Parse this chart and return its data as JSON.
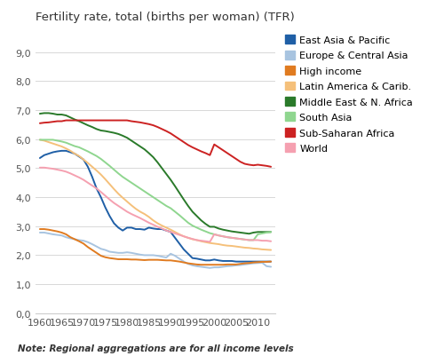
{
  "title": "Fertility rate, total (births per woman) (TFR)",
  "note": "Note: Regional aggregations are for all income levels",
  "years": [
    1960,
    1961,
    1962,
    1963,
    1964,
    1965,
    1966,
    1967,
    1968,
    1969,
    1970,
    1971,
    1972,
    1973,
    1974,
    1975,
    1976,
    1977,
    1978,
    1979,
    1980,
    1981,
    1982,
    1983,
    1984,
    1985,
    1986,
    1987,
    1988,
    1989,
    1990,
    1991,
    1992,
    1993,
    1994,
    1995,
    1996,
    1997,
    1998,
    1999,
    2000,
    2001,
    2002,
    2003,
    2004,
    2005,
    2006,
    2007,
    2008,
    2009,
    2010,
    2011,
    2012,
    2013
  ],
  "series": {
    "East Asia & Pacific": {
      "color": "#1f5fa6",
      "data": [
        5.35,
        5.45,
        5.5,
        5.55,
        5.58,
        5.6,
        5.6,
        5.55,
        5.5,
        5.4,
        5.3,
        5.05,
        4.7,
        4.3,
        4.0,
        3.65,
        3.35,
        3.1,
        2.95,
        2.85,
        2.95,
        2.95,
        2.9,
        2.9,
        2.88,
        2.95,
        2.92,
        2.9,
        2.9,
        2.85,
        2.8,
        2.6,
        2.4,
        2.2,
        2.05,
        1.9,
        1.88,
        1.85,
        1.82,
        1.82,
        1.85,
        1.82,
        1.8,
        1.8,
        1.8,
        1.78,
        1.78,
        1.78,
        1.78,
        1.78,
        1.78,
        1.78,
        1.78,
        1.78
      ]
    },
    "Europe & Central Asia": {
      "color": "#a8c4e0",
      "data": [
        2.78,
        2.78,
        2.75,
        2.72,
        2.7,
        2.68,
        2.62,
        2.58,
        2.55,
        2.52,
        2.5,
        2.45,
        2.38,
        2.3,
        2.22,
        2.18,
        2.12,
        2.1,
        2.08,
        2.08,
        2.1,
        2.08,
        2.05,
        2.02,
        2.0,
        2.0,
        2.0,
        1.98,
        1.95,
        1.92,
        2.05,
        1.98,
        1.88,
        1.78,
        1.7,
        1.65,
        1.62,
        1.6,
        1.58,
        1.56,
        1.58,
        1.58,
        1.6,
        1.62,
        1.63,
        1.65,
        1.66,
        1.68,
        1.7,
        1.72,
        1.73,
        1.74,
        1.62,
        1.6
      ]
    },
    "High income": {
      "color": "#e07b20",
      "data": [
        2.9,
        2.9,
        2.88,
        2.85,
        2.82,
        2.78,
        2.72,
        2.62,
        2.55,
        2.48,
        2.4,
        2.28,
        2.18,
        2.08,
        1.98,
        1.93,
        1.9,
        1.88,
        1.86,
        1.86,
        1.86,
        1.85,
        1.85,
        1.84,
        1.83,
        1.84,
        1.84,
        1.84,
        1.83,
        1.82,
        1.82,
        1.8,
        1.78,
        1.75,
        1.72,
        1.7,
        1.68,
        1.67,
        1.67,
        1.67,
        1.67,
        1.67,
        1.67,
        1.68,
        1.68,
        1.68,
        1.7,
        1.72,
        1.73,
        1.75,
        1.76,
        1.77,
        1.77,
        1.78
      ]
    },
    "Latin America & Carib.": {
      "color": "#f5c07a",
      "data": [
        5.98,
        5.95,
        5.9,
        5.85,
        5.8,
        5.75,
        5.68,
        5.6,
        5.5,
        5.42,
        5.3,
        5.18,
        5.05,
        4.92,
        4.78,
        4.62,
        4.45,
        4.28,
        4.12,
        3.98,
        3.85,
        3.72,
        3.6,
        3.5,
        3.42,
        3.32,
        3.2,
        3.1,
        3.02,
        2.95,
        2.88,
        2.8,
        2.72,
        2.65,
        2.6,
        2.55,
        2.52,
        2.48,
        2.45,
        2.42,
        2.4,
        2.38,
        2.35,
        2.33,
        2.32,
        2.3,
        2.28,
        2.26,
        2.25,
        2.23,
        2.22,
        2.2,
        2.19,
        2.18
      ]
    },
    "Middle East & N. Africa": {
      "color": "#2a7a2a",
      "data": [
        6.88,
        6.9,
        6.9,
        6.88,
        6.85,
        6.85,
        6.82,
        6.75,
        6.68,
        6.62,
        6.55,
        6.48,
        6.42,
        6.35,
        6.3,
        6.28,
        6.25,
        6.22,
        6.18,
        6.12,
        6.05,
        5.95,
        5.85,
        5.75,
        5.65,
        5.52,
        5.38,
        5.2,
        5.0,
        4.8,
        4.6,
        4.38,
        4.15,
        3.92,
        3.7,
        3.5,
        3.35,
        3.2,
        3.08,
        2.98,
        2.98,
        2.92,
        2.88,
        2.85,
        2.82,
        2.8,
        2.78,
        2.76,
        2.74,
        2.78,
        2.8,
        2.8,
        2.8,
        2.8
      ]
    },
    "South Asia": {
      "color": "#8fd68f",
      "data": [
        5.98,
        5.98,
        5.98,
        5.98,
        5.95,
        5.92,
        5.88,
        5.82,
        5.76,
        5.72,
        5.65,
        5.58,
        5.5,
        5.42,
        5.32,
        5.2,
        5.08,
        4.95,
        4.82,
        4.7,
        4.6,
        4.5,
        4.4,
        4.3,
        4.2,
        4.1,
        4.0,
        3.9,
        3.8,
        3.7,
        3.62,
        3.5,
        3.38,
        3.25,
        3.12,
        3.02,
        2.95,
        2.88,
        2.82,
        2.76,
        2.72,
        2.68,
        2.65,
        2.62,
        2.6,
        2.58,
        2.56,
        2.54,
        2.52,
        2.52,
        2.72,
        2.75,
        2.78,
        2.8
      ]
    },
    "Sub-Saharan Africa": {
      "color": "#cc2222",
      "data": [
        6.55,
        6.57,
        6.58,
        6.6,
        6.62,
        6.62,
        6.65,
        6.65,
        6.65,
        6.65,
        6.65,
        6.65,
        6.65,
        6.65,
        6.65,
        6.65,
        6.65,
        6.65,
        6.65,
        6.65,
        6.65,
        6.62,
        6.6,
        6.58,
        6.55,
        6.52,
        6.48,
        6.42,
        6.35,
        6.28,
        6.2,
        6.1,
        6.0,
        5.9,
        5.8,
        5.72,
        5.65,
        5.58,
        5.52,
        5.45,
        5.82,
        5.72,
        5.62,
        5.52,
        5.42,
        5.32,
        5.22,
        5.15,
        5.12,
        5.1,
        5.12,
        5.1,
        5.08,
        5.05
      ]
    },
    "World": {
      "color": "#f5a0b0",
      "data": [
        5.02,
        5.02,
        5.0,
        4.98,
        4.95,
        4.92,
        4.88,
        4.82,
        4.75,
        4.68,
        4.6,
        4.5,
        4.4,
        4.3,
        4.18,
        4.05,
        3.92,
        3.8,
        3.7,
        3.6,
        3.5,
        3.42,
        3.35,
        3.28,
        3.2,
        3.12,
        3.05,
        2.98,
        2.92,
        2.85,
        2.8,
        2.75,
        2.7,
        2.65,
        2.6,
        2.56,
        2.52,
        2.5,
        2.48,
        2.46,
        2.72,
        2.68,
        2.65,
        2.62,
        2.6,
        2.58,
        2.56,
        2.54,
        2.52,
        2.52,
        2.52,
        2.5,
        2.5,
        2.48
      ]
    }
  },
  "ylim": [
    0.0,
    9.6
  ],
  "yticks": [
    0.0,
    1.0,
    2.0,
    3.0,
    4.0,
    5.0,
    6.0,
    7.0,
    8.0,
    9.0
  ],
  "ytick_labels": [
    "0,0",
    "1,0",
    "2,0",
    "3,0",
    "4,0",
    "5,0",
    "6,0",
    "7,0",
    "8,0",
    "9,0"
  ],
  "xlim": [
    1959,
    2014
  ],
  "xticks": [
    1960,
    1965,
    1970,
    1975,
    1980,
    1985,
    1990,
    1995,
    2000,
    2005,
    2010
  ],
  "background_color": "#ffffff",
  "grid_color": "#d8d8d8",
  "title_fontsize": 9.5,
  "axis_fontsize": 8,
  "legend_fontsize": 8,
  "note_fontsize": 7.5
}
